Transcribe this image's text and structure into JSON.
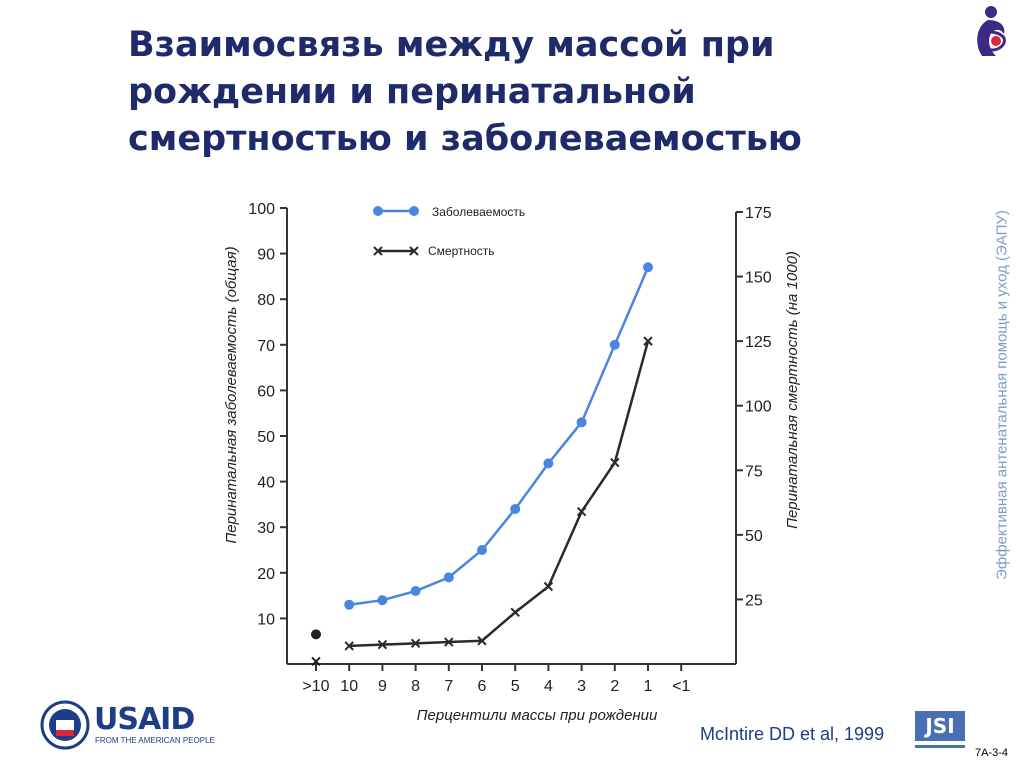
{
  "slide": {
    "title_lines": [
      "Взаимосвязь между массой при",
      "рождении и перинатальной",
      "смертностью и заболеваемостью"
    ],
    "side_caption": "Эффективная антенатальная помощь и уход (ЭАПУ)",
    "citation": "McIntire DD et al, 1999",
    "slide_number": "7A-3-4",
    "usaid_name": "USAID",
    "usaid_tagline": "FROM THE AMERICAN PEOPLE",
    "jsi_logo": "JSI",
    "colors": {
      "title": "#1f2a6b",
      "accent": "#1b3e86",
      "caption": "#7e9bc6"
    }
  },
  "chart_data": {
    "type": "line",
    "categories": [
      ">10",
      "10",
      "9",
      "8",
      "7",
      "6",
      "5",
      "4",
      "3",
      "2",
      "1",
      "<1"
    ],
    "xlabel": "Перцентили массы при рождении",
    "ylabel_left": "Перинатальная заболеваемость (общая)",
    "ylabel_right": "Перинатальная смертность (на 1000)",
    "y_left_ticks": [
      "10",
      "20",
      "30",
      "40",
      "50",
      "60",
      "70",
      "80",
      "90",
      "100"
    ],
    "y_right_ticks": [
      "25",
      "50",
      "75",
      "100",
      "125",
      "150",
      "175"
    ],
    "ylim_left": [
      0,
      100
    ],
    "ylim_right": [
      0,
      175
    ],
    "series": [
      {
        "name": "Заболеваемость",
        "axis": "left",
        "color": "#4a86e0",
        "marker": "dot",
        "values": [
          null,
          13,
          14,
          16,
          19,
          25,
          34,
          44,
          53,
          70,
          87,
          null
        ]
      },
      {
        "name": "Смертность",
        "axis": "right",
        "color": "#2a2a2a",
        "marker": "x",
        "values": [
          null,
          7,
          7.5,
          8,
          8.5,
          9,
          20,
          30,
          59,
          78,
          125,
          null
        ]
      }
    ],
    "extra_points": [
      {
        "category": ">10",
        "axis": "left",
        "value": 6.5,
        "marker": "dot",
        "color": "#222222"
      },
      {
        "category": ">10",
        "axis": "right",
        "value": 1,
        "marker": "x",
        "color": "#222222"
      }
    ],
    "legend_position": "top-left",
    "grid": false
  }
}
